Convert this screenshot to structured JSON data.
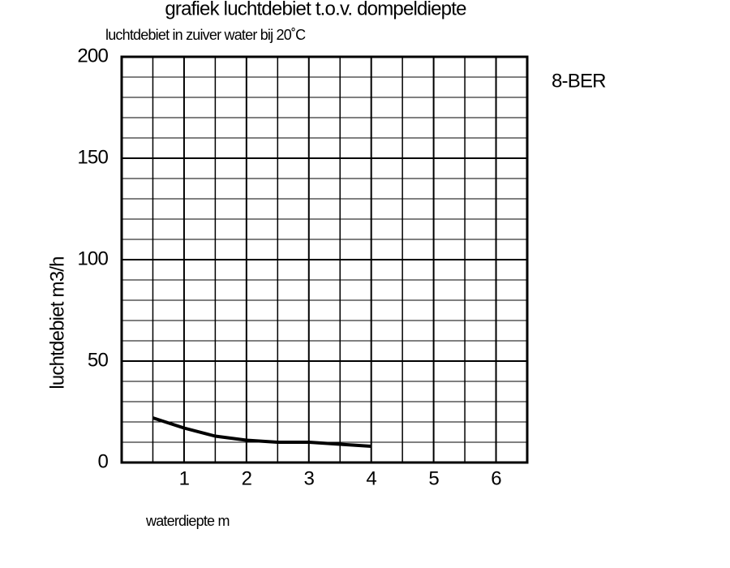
{
  "chart_data": {
    "type": "line",
    "title": "grafiek luchtdebiet t.o.v. dompeldiepte",
    "subtitle": "luchtdebiet in zuiver water bij 20˚C",
    "x_label": "waterdiepte m",
    "y_label": "luchtdebiet m3/h",
    "annotation": "8-BER",
    "x": [
      0.5,
      1,
      1.5,
      2,
      2.5,
      3,
      3.5,
      4
    ],
    "series": [
      {
        "color": "#000000",
        "values": [
          22,
          17,
          13,
          11,
          10,
          10,
          9,
          8
        ]
      }
    ],
    "xlim": [
      0,
      6.5
    ],
    "ylim": [
      0,
      200
    ],
    "xticks": [
      1,
      2,
      3,
      4,
      5,
      6
    ],
    "yticks": [
      0,
      50,
      100,
      150,
      200
    ],
    "xminor": [
      0.5,
      1.5,
      2.5,
      3.5,
      4.5,
      5.5
    ],
    "yminor": [
      10,
      20,
      30,
      40,
      60,
      70,
      80,
      90,
      110,
      120,
      130,
      140,
      160,
      170,
      180,
      190
    ],
    "grid": true
  }
}
